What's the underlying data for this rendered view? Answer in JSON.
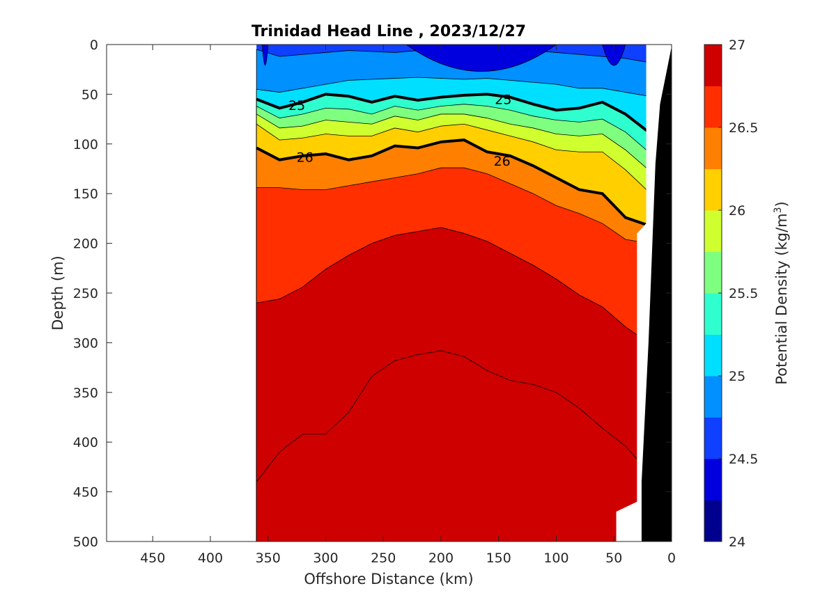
{
  "chart_data": {
    "type": "contour",
    "title": "Trinidad Head Line , 2023/12/27",
    "xlabel": "Offshore Distance (km)",
    "ylabel": "Depth (m)",
    "colorbar_label": "Potential Density (kg/m",
    "colorbar_label_sup": "3",
    "colorbar_label_end": ")",
    "x_reversed": true,
    "xlim": [
      490,
      0
    ],
    "ylim": [
      0,
      500
    ],
    "y_reversed": true,
    "xticks": [
      450,
      400,
      350,
      300,
      250,
      200,
      150,
      100,
      50,
      0
    ],
    "yticks": [
      0,
      50,
      100,
      150,
      200,
      250,
      300,
      350,
      400,
      450,
      500
    ],
    "clim": [
      24,
      27
    ],
    "colorbar_ticks": [
      24,
      24.5,
      25,
      25.5,
      26,
      26.5,
      27
    ],
    "colorbar_tick_labels": [
      "24",
      "24.5",
      "25",
      "25.5",
      "26",
      "26.5",
      "27"
    ],
    "levels": [
      24.25,
      24.5,
      24.75,
      25,
      25.25,
      25.5,
      25.75,
      26,
      26.25,
      26.5,
      26.75
    ],
    "level_colors": [
      "#00008f",
      "#0000df",
      "#0f3fff",
      "#0090ff",
      "#00dfff",
      "#2fffcf",
      "#7fff7f",
      "#cfff2f",
      "#ffcf00",
      "#ff7f00",
      "#ff2f00",
      "#cf0000"
    ],
    "data_x_range_km": [
      20,
      360
    ],
    "contour_labels": [
      {
        "level": "25",
        "x_km": 325,
        "depth": 61
      },
      {
        "level": "25",
        "x_km": 146,
        "depth": 55
      },
      {
        "level": "26",
        "x_km": 318,
        "depth": 113
      },
      {
        "level": "26",
        "x_km": 147,
        "depth": 117
      }
    ],
    "isopycnals": {
      "x_km": [
        360,
        340,
        320,
        300,
        280,
        260,
        240,
        220,
        200,
        180,
        160,
        140,
        120,
        100,
        80,
        60,
        40,
        20
      ],
      "depth_24_5": [
        5,
        12,
        10,
        8,
        6,
        7,
        8,
        6,
        5,
        6,
        5,
        4,
        6,
        8,
        10,
        12,
        14,
        18
      ],
      "depth_24_75": [
        45,
        48,
        44,
        40,
        36,
        35,
        34,
        33,
        34,
        35,
        34,
        36,
        38,
        40,
        44,
        44,
        48,
        52
      ],
      "depth_25": [
        55,
        64,
        58,
        50,
        52,
        58,
        52,
        56,
        53,
        51,
        50,
        53,
        60,
        66,
        64,
        58,
        70,
        88
      ],
      "depth_25_25": [
        62,
        74,
        70,
        64,
        65,
        70,
        62,
        66,
        62,
        60,
        62,
        66,
        72,
        76,
        78,
        75,
        88,
        108
      ],
      "depth_25_5": [
        70,
        84,
        82,
        76,
        78,
        80,
        72,
        76,
        70,
        70,
        74,
        80,
        84,
        90,
        92,
        90,
        106,
        126
      ],
      "depth_25_75": [
        80,
        96,
        94,
        90,
        92,
        92,
        84,
        88,
        82,
        80,
        86,
        92,
        98,
        106,
        108,
        108,
        126,
        148
      ],
      "depth_26": [
        104,
        116,
        112,
        110,
        116,
        112,
        102,
        104,
        98,
        96,
        108,
        112,
        122,
        134,
        146,
        150,
        174,
        182
      ],
      "depth_26_25": [
        144,
        144,
        146,
        146,
        142,
        138,
        134,
        130,
        124,
        124,
        130,
        140,
        150,
        162,
        170,
        180,
        196,
        200
      ],
      "depth_26_5": [
        260,
        256,
        244,
        226,
        212,
        200,
        192,
        188,
        184,
        190,
        198,
        210,
        222,
        236,
        252,
        264,
        284,
        300
      ],
      "depth_26_75": [
        440,
        410,
        392,
        392,
        370,
        334,
        318,
        312,
        308,
        314,
        328,
        338,
        342,
        350,
        366,
        386,
        404,
        430
      ]
    }
  }
}
